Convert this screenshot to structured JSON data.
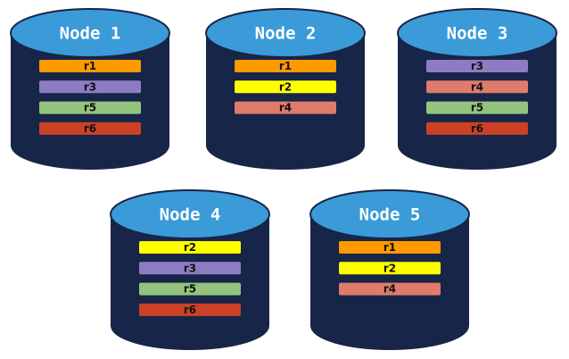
{
  "nodes": [
    {
      "label": "Node 1",
      "items": [
        {
          "label": "r1",
          "color": "#ff9900"
        },
        {
          "label": "r3",
          "color": "#8e7cc3"
        },
        {
          "label": "r5",
          "color": "#93c47d"
        },
        {
          "label": "r6",
          "color": "#cc4125"
        }
      ]
    },
    {
      "label": "Node 2",
      "items": [
        {
          "label": "r1",
          "color": "#ff9900"
        },
        {
          "label": "r2",
          "color": "#ffff00"
        },
        {
          "label": "r4",
          "color": "#e07b6a"
        }
      ]
    },
    {
      "label": "Node 3",
      "items": [
        {
          "label": "r3",
          "color": "#8e7cc3"
        },
        {
          "label": "r4",
          "color": "#e07b6a"
        },
        {
          "label": "r5",
          "color": "#93c47d"
        },
        {
          "label": "r6",
          "color": "#cc4125"
        }
      ]
    },
    {
      "label": "Node 4",
      "items": [
        {
          "label": "r2",
          "color": "#ffff00"
        },
        {
          "label": "r3",
          "color": "#8e7cc3"
        },
        {
          "label": "r5",
          "color": "#93c47d"
        },
        {
          "label": "r6",
          "color": "#cc4125"
        }
      ]
    },
    {
      "label": "Node 5",
      "items": [
        {
          "label": "r1",
          "color": "#ff9900"
        },
        {
          "label": "r2",
          "color": "#ffff00"
        },
        {
          "label": "r4",
          "color": "#e07b6a"
        }
      ]
    }
  ]
}
